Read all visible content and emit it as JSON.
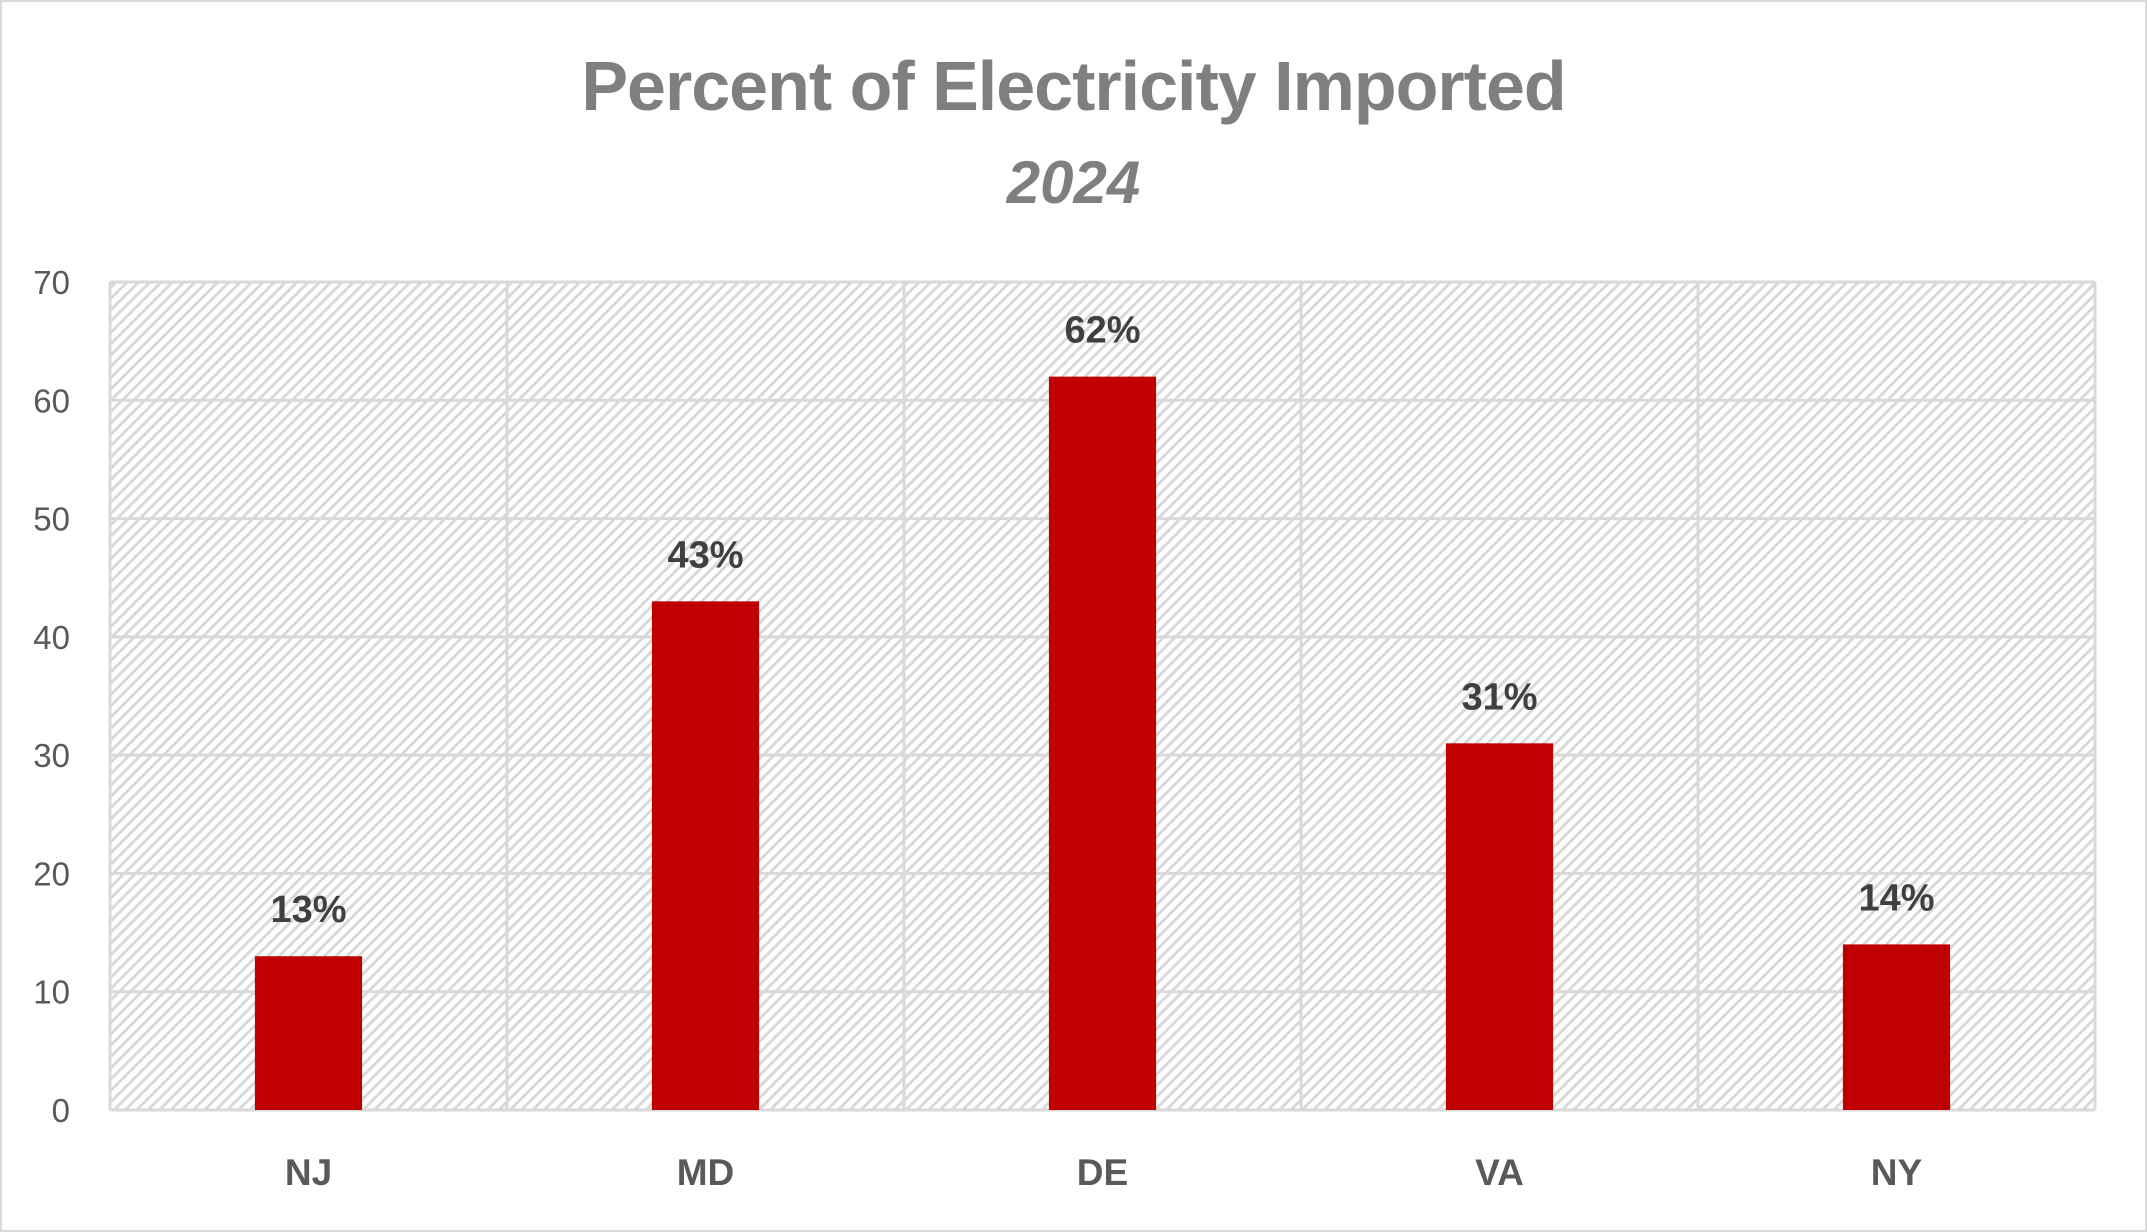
{
  "chart_data": {
    "type": "bar",
    "title": "Percent of Electricity Imported",
    "subtitle": "2024",
    "categories": [
      "NJ",
      "MD",
      "DE",
      "VA",
      "NY"
    ],
    "values": [
      13,
      43,
      62,
      31,
      14
    ],
    "data_labels": [
      "13%",
      "43%",
      "62%",
      "31%",
      "14%"
    ],
    "xlabel": "",
    "ylabel": "",
    "ylim": [
      0,
      70
    ],
    "yticks": [
      0,
      10,
      20,
      30,
      40,
      50,
      60,
      70
    ],
    "grid": "both",
    "legend": "none",
    "bar_color": "#c00000",
    "plot_background": "diagonal-hatch"
  }
}
